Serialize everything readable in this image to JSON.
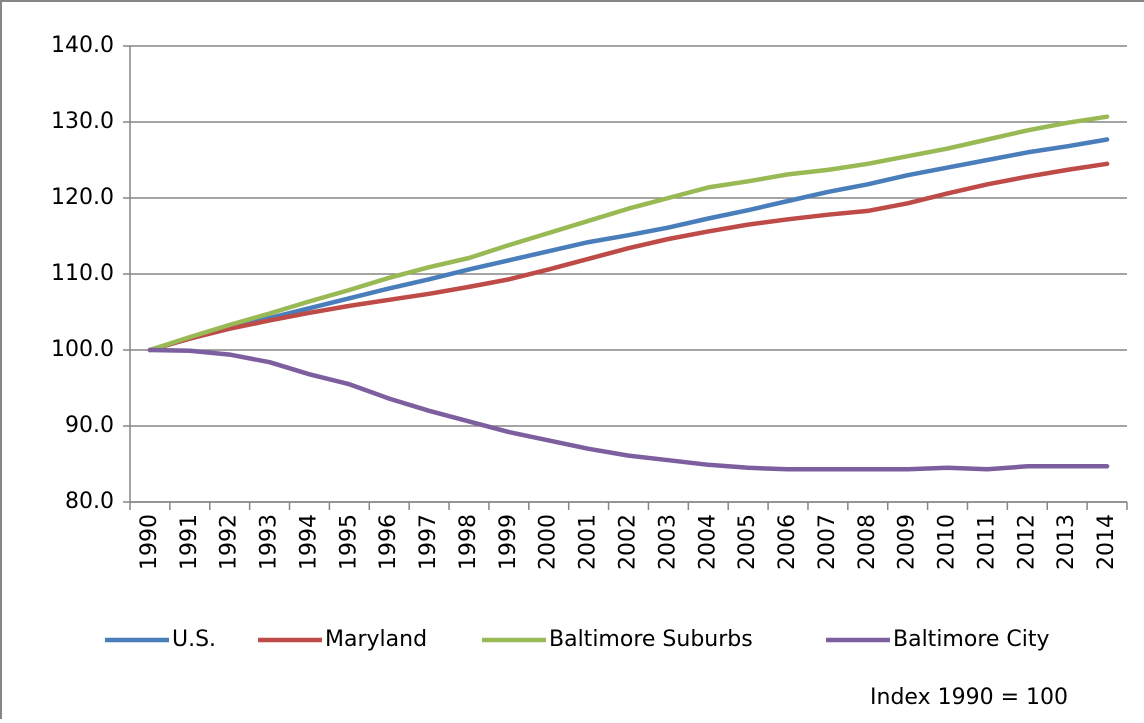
{
  "chart_data": {
    "type": "line",
    "categories": [
      "1990",
      "1991",
      "1992",
      "1993",
      "1994",
      "1995",
      "1996",
      "1997",
      "1998",
      "1999",
      "2000",
      "2001",
      "2002",
      "2003",
      "2004",
      "2005",
      "2006",
      "2007",
      "2008",
      "2009",
      "2010",
      "2011",
      "2012",
      "2013",
      "2014"
    ],
    "series": [
      {
        "name": "U.S.",
        "color": "#4a7ebb",
        "values": [
          100,
          101.5,
          102.9,
          104.2,
          105.5,
          106.8,
          108.1,
          109.3,
          110.6,
          111.8,
          113.0,
          114.2,
          115.1,
          116.1,
          117.3,
          118.4,
          119.6,
          120.8,
          121.8,
          123.0,
          124.0,
          125.0,
          126.0,
          126.8,
          127.7
        ]
      },
      {
        "name": "Maryland",
        "color": "#be4b48",
        "values": [
          100,
          101.5,
          102.8,
          103.9,
          104.9,
          105.8,
          106.6,
          107.4,
          108.3,
          109.3,
          110.6,
          112.0,
          113.4,
          114.6,
          115.6,
          116.5,
          117.2,
          117.8,
          118.3,
          119.3,
          120.6,
          121.8,
          122.8,
          123.7,
          124.5
        ]
      },
      {
        "name": "Baltimore Suburbs",
        "color": "#98b954",
        "values": [
          100,
          101.7,
          103.3,
          104.8,
          106.4,
          107.9,
          109.5,
          110.9,
          112.1,
          113.8,
          115.4,
          117.0,
          118.6,
          120.0,
          121.4,
          122.2,
          123.1,
          123.7,
          124.5,
          125.5,
          126.5,
          127.7,
          128.9,
          129.9,
          130.7
        ]
      },
      {
        "name": "Baltimore City",
        "color": "#7d5fa0",
        "values": [
          100,
          99.9,
          99.4,
          98.4,
          96.8,
          95.5,
          93.6,
          92.0,
          90.6,
          89.2,
          88.1,
          87.0,
          86.1,
          85.5,
          84.9,
          84.5,
          84.3,
          84.3,
          84.3,
          84.3,
          84.5,
          84.3,
          84.7,
          84.7,
          84.7
        ]
      }
    ],
    "ylim": [
      80,
      140
    ],
    "yticks": [
      {
        "value": 80,
        "label": "80.0"
      },
      {
        "value": 90,
        "label": "90.0"
      },
      {
        "value": 100,
        "label": "100.0"
      },
      {
        "value": 110,
        "label": "110.0"
      },
      {
        "value": 120,
        "label": "120.0"
      },
      {
        "value": 130,
        "label": "130.0"
      },
      {
        "value": 140,
        "label": "140.0"
      }
    ],
    "grid": true,
    "legend": "bottom",
    "annotation": "Index 1990 = 100"
  }
}
